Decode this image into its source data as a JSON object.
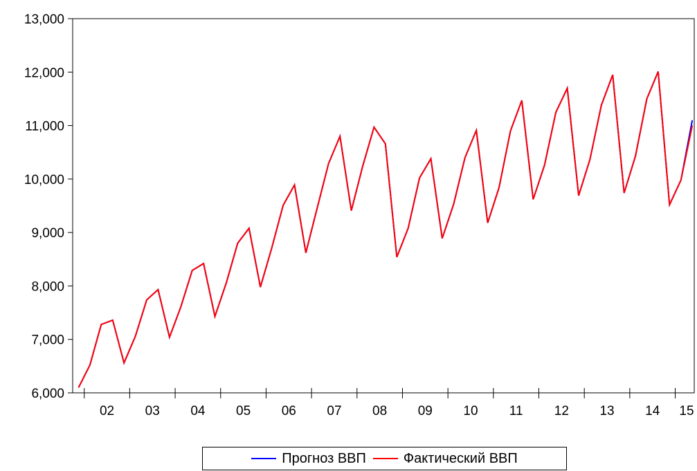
{
  "chart_data": {
    "type": "line",
    "title": "",
    "xlabel": "",
    "ylabel": "",
    "ylim": [
      6000,
      13000
    ],
    "yticks": [
      6000,
      7000,
      8000,
      9000,
      10000,
      11000,
      12000,
      13000
    ],
    "ytick_labels": [
      "6,000",
      "7,000",
      "8,000",
      "9,000",
      "10,000",
      "11,000",
      "12,000",
      "13,000"
    ],
    "x_periods": [
      "2001Q4",
      "2002Q1",
      "2002Q2",
      "2002Q3",
      "2002Q4",
      "2003Q1",
      "2003Q2",
      "2003Q3",
      "2003Q4",
      "2004Q1",
      "2004Q2",
      "2004Q3",
      "2004Q4",
      "2005Q1",
      "2005Q2",
      "2005Q3",
      "2005Q4",
      "2006Q1",
      "2006Q2",
      "2006Q3",
      "2006Q4",
      "2007Q1",
      "2007Q2",
      "2007Q3",
      "2007Q4",
      "2008Q1",
      "2008Q2",
      "2008Q3",
      "2008Q4",
      "2009Q1",
      "2009Q2",
      "2009Q3",
      "2009Q4",
      "2010Q1",
      "2010Q2",
      "2010Q3",
      "2010Q4",
      "2011Q1",
      "2011Q2",
      "2011Q3",
      "2011Q4",
      "2012Q1",
      "2012Q2",
      "2012Q3",
      "2012Q4",
      "2013Q1",
      "2013Q2",
      "2013Q3",
      "2013Q4",
      "2014Q1",
      "2014Q2",
      "2014Q3",
      "2014Q4",
      "2015Q1",
      "2015Q2"
    ],
    "x_year_labels": [
      "02",
      "03",
      "04",
      "05",
      "06",
      "07",
      "08",
      "09",
      "10",
      "11",
      "12",
      "13",
      "14",
      "15"
    ],
    "grid": false,
    "legend_position": "bottom-center",
    "series": [
      {
        "name": "Прогноз ВВП",
        "color": "#0000ff",
        "values": [
          6100,
          6520,
          7280,
          7360,
          6560,
          7060,
          7740,
          7930,
          7040,
          7610,
          8290,
          8420,
          7430,
          8060,
          8800,
          9080,
          7980,
          8710,
          9510,
          9890,
          8620,
          9460,
          10290,
          10800,
          9410,
          10240,
          10970,
          10660,
          8540,
          9080,
          10020,
          10380,
          8890,
          9530,
          10400,
          10910,
          9180,
          9840,
          10900,
          11470,
          9620,
          10260,
          11250,
          11700,
          9690,
          10370,
          11380,
          11950,
          9740,
          10430,
          11500,
          12010,
          9520,
          9980,
          11100
        ]
      },
      {
        "name": "Фактический ВВП",
        "color": "#ff0000",
        "values": [
          6100,
          6520,
          7280,
          7360,
          6560,
          7060,
          7740,
          7930,
          7040,
          7610,
          8290,
          8420,
          7430,
          8060,
          8800,
          9080,
          7980,
          8710,
          9510,
          9890,
          8620,
          9460,
          10290,
          10800,
          9410,
          10240,
          10970,
          10660,
          8540,
          9080,
          10020,
          10380,
          8890,
          9530,
          10400,
          10910,
          9180,
          9840,
          10900,
          11470,
          9620,
          10260,
          11250,
          11700,
          9690,
          10370,
          11380,
          11950,
          9740,
          10430,
          11500,
          12010,
          9520,
          9980,
          11000
        ]
      }
    ]
  },
  "legend": {
    "items": [
      {
        "label": "Прогноз ВВП",
        "color": "#0000ff"
      },
      {
        "label": "Фактический ВВП",
        "color": "#ff0000"
      }
    ]
  }
}
